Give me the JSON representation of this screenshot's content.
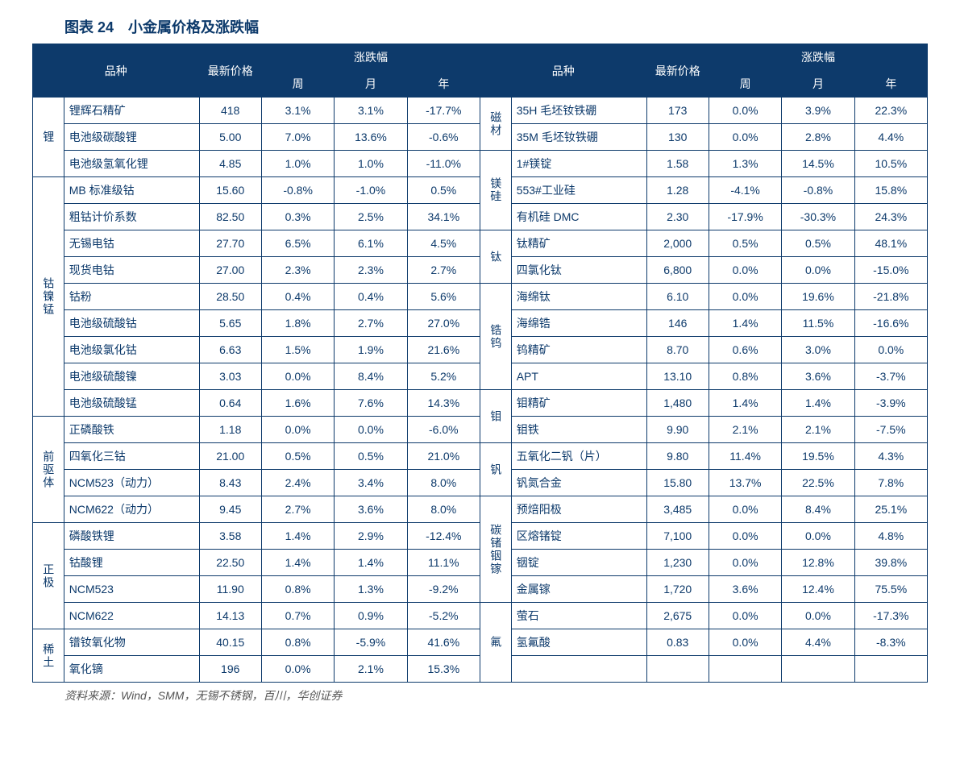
{
  "title": "图表 24　小金属价格及涨跌幅",
  "source": "资料来源：Wind，SMM，无锡不锈钢，百川，华创证券",
  "colors": {
    "header_bg": "#0d3a6b",
    "header_fg": "#ffffff",
    "border": "#0d3a6b",
    "text": "#0d3a6b",
    "background": "#ffffff"
  },
  "headers": {
    "category": "品种",
    "price": "最新价格",
    "change": "涨跌幅",
    "week": "周",
    "month": "月",
    "year": "年"
  },
  "left": [
    {
      "cat": "锂",
      "span": 3,
      "rows": [
        {
          "name": "锂辉石精矿",
          "price": "418",
          "w": "3.1%",
          "m": "3.1%",
          "y": "-17.7%"
        },
        {
          "name": "电池级碳酸锂",
          "price": "5.00",
          "w": "7.0%",
          "m": "13.6%",
          "y": "-0.6%"
        },
        {
          "name": "电池级氢氧化锂",
          "price": "4.85",
          "w": "1.0%",
          "m": "1.0%",
          "y": "-11.0%"
        }
      ]
    },
    {
      "cat": "钴镍锰",
      "span": 9,
      "rows": [
        {
          "name": "MB 标准级钴",
          "price": "15.60",
          "w": "-0.8%",
          "m": "-1.0%",
          "y": "0.5%"
        },
        {
          "name": "粗钴计价系数",
          "price": "82.50",
          "w": "0.3%",
          "m": "2.5%",
          "y": "34.1%"
        },
        {
          "name": "无锡电钴",
          "price": "27.70",
          "w": "6.5%",
          "m": "6.1%",
          "y": "4.5%"
        },
        {
          "name": "现货电钴",
          "price": "27.00",
          "w": "2.3%",
          "m": "2.3%",
          "y": "2.7%"
        },
        {
          "name": "钴粉",
          "price": "28.50",
          "w": "0.4%",
          "m": "0.4%",
          "y": "5.6%"
        },
        {
          "name": "电池级硫酸钴",
          "price": "5.65",
          "w": "1.8%",
          "m": "2.7%",
          "y": "27.0%"
        },
        {
          "name": "电池级氯化钴",
          "price": "6.63",
          "w": "1.5%",
          "m": "1.9%",
          "y": "21.6%"
        },
        {
          "name": "电池级硫酸镍",
          "price": "3.03",
          "w": "0.0%",
          "m": "8.4%",
          "y": "5.2%"
        },
        {
          "name": "电池级硫酸锰",
          "price": "0.64",
          "w": "1.6%",
          "m": "7.6%",
          "y": "14.3%"
        }
      ]
    },
    {
      "cat": "前驱体",
      "span": 4,
      "rows": [
        {
          "name": "正磷酸铁",
          "price": "1.18",
          "w": "0.0%",
          "m": "0.0%",
          "y": "-6.0%"
        },
        {
          "name": "四氧化三钴",
          "price": "21.00",
          "w": "0.5%",
          "m": "0.5%",
          "y": "21.0%"
        },
        {
          "name": "NCM523（动力）",
          "price": "8.43",
          "w": "2.4%",
          "m": "3.4%",
          "y": "8.0%"
        },
        {
          "name": "NCM622（动力）",
          "price": "9.45",
          "w": "2.7%",
          "m": "3.6%",
          "y": "8.0%"
        }
      ]
    },
    {
      "cat": "正极",
      "span": 4,
      "rows": [
        {
          "name": "磷酸铁锂",
          "price": "3.58",
          "w": "1.4%",
          "m": "2.9%",
          "y": "-12.4%"
        },
        {
          "name": "钴酸锂",
          "price": "22.50",
          "w": "1.4%",
          "m": "1.4%",
          "y": "11.1%"
        },
        {
          "name": "NCM523",
          "price": "11.90",
          "w": "0.8%",
          "m": "1.3%",
          "y": "-9.2%"
        },
        {
          "name": "NCM622",
          "price": "14.13",
          "w": "0.7%",
          "m": "0.9%",
          "y": "-5.2%"
        }
      ]
    },
    {
      "cat": "稀土",
      "span": 2,
      "rows": [
        {
          "name": "镨钕氧化物",
          "price": "40.15",
          "w": "0.8%",
          "m": "-5.9%",
          "y": "41.6%"
        },
        {
          "name": "氧化镝",
          "price": "196",
          "w": "0.0%",
          "m": "2.1%",
          "y": "15.3%"
        }
      ]
    }
  ],
  "right": [
    {
      "cat": "磁材",
      "span": 2,
      "rows": [
        {
          "name": "35H 毛坯钕铁硼",
          "price": "173",
          "w": "0.0%",
          "m": "3.9%",
          "y": "22.3%"
        },
        {
          "name": "35M 毛坯钕铁硼",
          "price": "130",
          "w": "0.0%",
          "m": "2.8%",
          "y": "4.4%"
        }
      ]
    },
    {
      "cat": "镁硅",
      "span": 3,
      "rows": [
        {
          "name": "1#镁锭",
          "price": "1.58",
          "w": "1.3%",
          "m": "14.5%",
          "y": "10.5%"
        },
        {
          "name": "553#工业硅",
          "price": "1.28",
          "w": "-4.1%",
          "m": "-0.8%",
          "y": "15.8%"
        },
        {
          "name": "有机硅 DMC",
          "price": "2.30",
          "w": "-17.9%",
          "m": "-30.3%",
          "y": "24.3%"
        }
      ]
    },
    {
      "cat": "钛",
      "span": 2,
      "rows": [
        {
          "name": "钛精矿",
          "price": "2,000",
          "w": "0.5%",
          "m": "0.5%",
          "y": "48.1%"
        },
        {
          "name": "四氯化钛",
          "price": "6,800",
          "w": "0.0%",
          "m": "0.0%",
          "y": "-15.0%"
        }
      ]
    },
    {
      "cat": "锆钨",
      "span": 4,
      "rows": [
        {
          "name": "海绵钛",
          "price": "6.10",
          "w": "0.0%",
          "m": "19.6%",
          "y": "-21.8%"
        },
        {
          "name": "海绵锆",
          "price": "146",
          "w": "1.4%",
          "m": "11.5%",
          "y": "-16.6%"
        },
        {
          "name": "钨精矿",
          "price": "8.70",
          "w": "0.6%",
          "m": "3.0%",
          "y": "0.0%"
        },
        {
          "name": "APT",
          "price": "13.10",
          "w": "0.8%",
          "m": "3.6%",
          "y": "-3.7%"
        }
      ]
    },
    {
      "cat": "钼",
      "span": 2,
      "rows": [
        {
          "name": "钼精矿",
          "price": "1,480",
          "w": "1.4%",
          "m": "1.4%",
          "y": "-3.9%"
        },
        {
          "name": "钼铁",
          "price": "9.90",
          "w": "2.1%",
          "m": "2.1%",
          "y": "-7.5%"
        }
      ]
    },
    {
      "cat": "钒",
      "span": 2,
      "rows": [
        {
          "name": "五氧化二钒（片）",
          "price": "9.80",
          "w": "11.4%",
          "m": "19.5%",
          "y": "4.3%"
        },
        {
          "name": "钒氮合金",
          "price": "15.80",
          "w": "13.7%",
          "m": "22.5%",
          "y": "7.8%"
        }
      ]
    },
    {
      "cat": "碳锗铟镓",
      "span": 4,
      "rows": [
        {
          "name": "预焙阳极",
          "price": "3,485",
          "w": "0.0%",
          "m": "8.4%",
          "y": "25.1%"
        },
        {
          "name": "区熔锗锭",
          "price": "7,100",
          "w": "0.0%",
          "m": "0.0%",
          "y": "4.8%"
        },
        {
          "name": "铟锭",
          "price": "1,230",
          "w": "0.0%",
          "m": "12.8%",
          "y": "39.8%"
        },
        {
          "name": "金属镓",
          "price": "1,720",
          "w": "3.6%",
          "m": "12.4%",
          "y": "75.5%"
        }
      ]
    },
    {
      "cat": "氟",
      "span": 3,
      "rows": [
        {
          "name": "萤石",
          "price": "2,675",
          "w": "0.0%",
          "m": "0.0%",
          "y": "-17.3%"
        },
        {
          "name": "氢氟酸",
          "price": "0.83",
          "w": "0.0%",
          "m": "4.4%",
          "y": "-8.3%"
        },
        {
          "name": "",
          "price": "",
          "w": "",
          "m": "",
          "y": ""
        }
      ]
    }
  ]
}
